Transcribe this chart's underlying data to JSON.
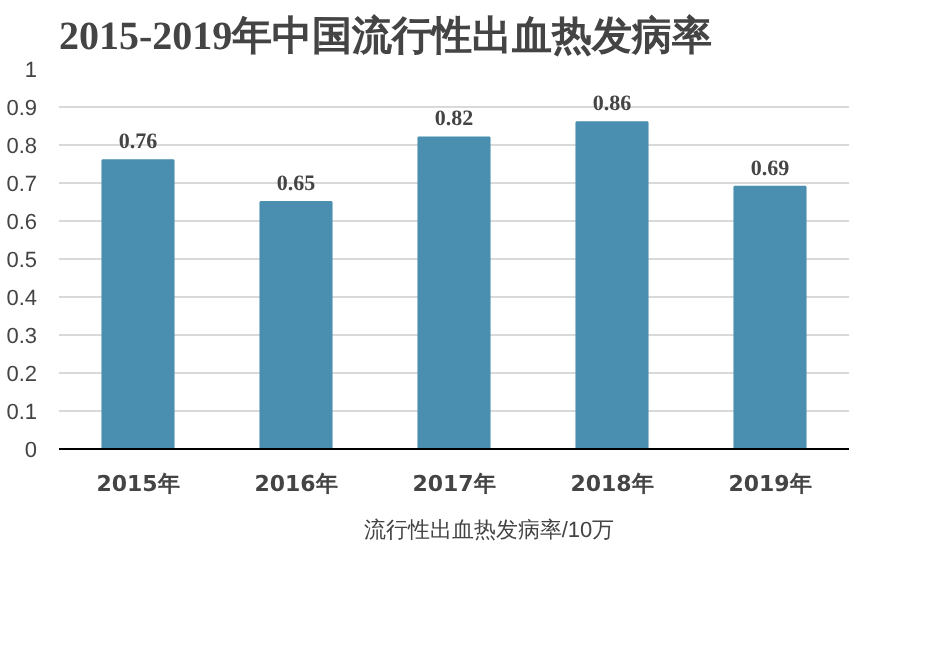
{
  "chart_data": {
    "type": "bar",
    "title": "2015-2019年中国流行性出血热发病率",
    "categories": [
      "2015年",
      "2016年",
      "2017年",
      "2018年",
      "2019年"
    ],
    "series": [
      {
        "name": "流行性出血热发病率/10万",
        "color": "#4a8fb0",
        "values": [
          0.76,
          0.65,
          0.82,
          0.86,
          0.69
        ]
      }
    ],
    "ylim": [
      0,
      1
    ],
    "yticks": [
      0,
      0.1,
      0.2,
      0.3,
      0.4,
      0.5,
      0.6,
      0.7,
      0.8,
      0.9,
      1
    ],
    "grid": "y",
    "legend": "bottom",
    "data_labels": true
  }
}
